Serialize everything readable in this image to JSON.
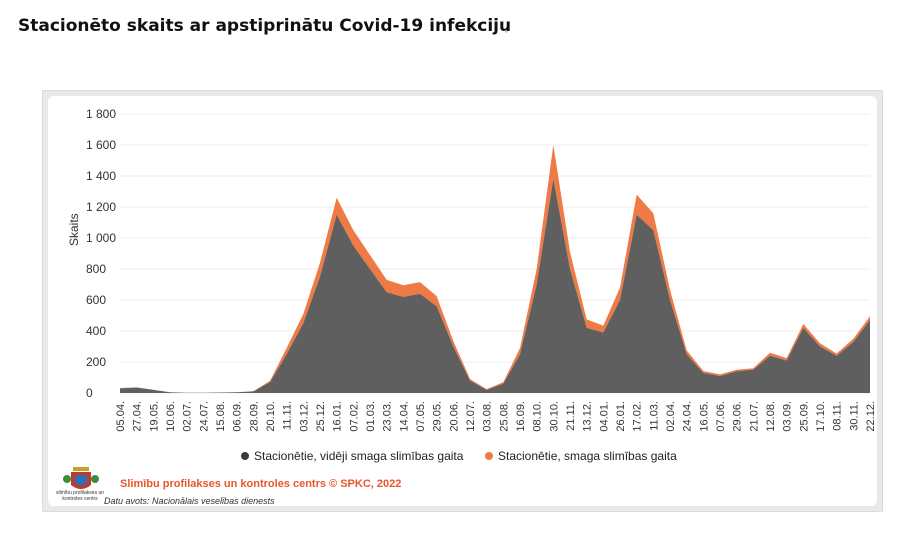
{
  "title": "Stacionēto skaits ar apstiprinātu Covid-19 infekciju",
  "chart_data": {
    "type": "area",
    "stacked": true,
    "ylabel": "Skaits",
    "ylim": [
      0,
      1800
    ],
    "yticks": [
      "1 800",
      "1 600",
      "1 400",
      "1 200",
      "1 000",
      "800",
      "600",
      "400",
      "200",
      "0"
    ],
    "ytick_values": [
      1800,
      1600,
      1400,
      1200,
      1000,
      800,
      600,
      400,
      200,
      0
    ],
    "categories": [
      "05.04.",
      "27.04.",
      "19.05.",
      "10.06.",
      "02.07.",
      "24.07.",
      "15.08.",
      "06.09.",
      "28.09.",
      "20.10.",
      "11.11.",
      "03.12.",
      "25.12.",
      "16.01.",
      "07.02.",
      "01.03.",
      "23.03.",
      "14.04.",
      "07.05.",
      "29.05.",
      "20.06.",
      "12.07.",
      "03.08.",
      "25.08.",
      "16.09.",
      "08.10.",
      "30.10.",
      "21.11.",
      "13.12.",
      "04.01.",
      "26.01.",
      "17.02.",
      "11.03.",
      "02.04.",
      "24.04.",
      "16.05.",
      "07.06.",
      "29.06.",
      "21.07.",
      "12.08.",
      "03.09.",
      "25.09.",
      "17.10.",
      "08.11.",
      "30.11.",
      "22.12."
    ],
    "series": [
      {
        "name": "Stacionētie, vidēji smaga slimības gaita",
        "color": "#5f5f5f",
        "values": [
          30,
          35,
          20,
          5,
          2,
          2,
          3,
          5,
          10,
          70,
          250,
          450,
          750,
          1150,
          950,
          800,
          650,
          620,
          640,
          560,
          300,
          80,
          20,
          60,
          250,
          700,
          1380,
          800,
          420,
          390,
          600,
          1150,
          1050,
          600,
          250,
          130,
          110,
          140,
          150,
          240,
          210,
          420,
          300,
          240,
          330,
          470
        ]
      },
      {
        "name": "Stacionētie, smaga slimības gaita",
        "color": "#f07a45",
        "values": [
          2,
          2,
          1,
          0,
          0,
          0,
          0,
          0,
          2,
          8,
          40,
          60,
          90,
          110,
          100,
          90,
          80,
          75,
          75,
          65,
          35,
          10,
          5,
          10,
          40,
          100,
          220,
          110,
          55,
          45,
          80,
          130,
          110,
          65,
          25,
          12,
          10,
          10,
          10,
          20,
          15,
          25,
          20,
          15,
          20,
          25
        ]
      }
    ],
    "legend_position": "bottom"
  },
  "footer": {
    "credit": "Slimību profilakses un kontroles centrs © SPKC, 2022",
    "source": "Datu avots: Nacionālais veselības dienests",
    "logo_text": "slimību profilakses un kontroles centrs"
  },
  "colors": {
    "dark_series": "#5f5f5f",
    "orange_series": "#f07a45",
    "credit_text": "#e8562a"
  }
}
